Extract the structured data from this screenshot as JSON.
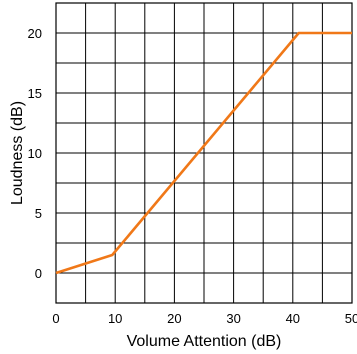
{
  "chart_data": {
    "type": "line",
    "xlabel": "Volume Attention  (dB)",
    "ylabel": "Loudness  (dB)",
    "xlim": [
      0,
      50
    ],
    "ylim": [
      -2.5,
      22.5
    ],
    "x_ticks": [
      0,
      10,
      20,
      30,
      40,
      50
    ],
    "y_ticks": [
      0,
      5,
      10,
      15,
      20
    ],
    "grid": true,
    "grid_x_step": 5,
    "grid_y_step": 2.5,
    "series": [
      {
        "color": "#f07818",
        "x": [
          0,
          9.5,
          41,
          50
        ],
        "y": [
          0,
          1.5,
          20,
          20
        ]
      }
    ]
  }
}
